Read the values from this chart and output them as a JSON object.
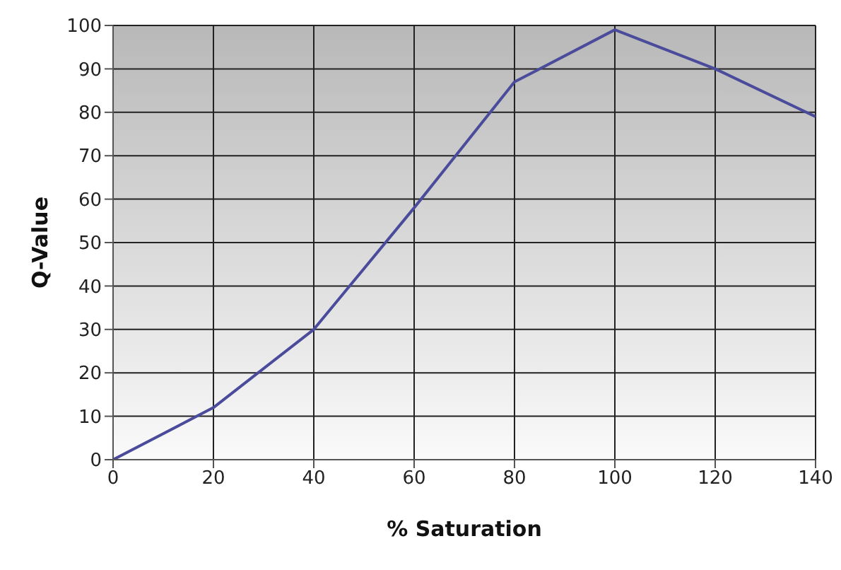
{
  "chart_data": {
    "type": "line",
    "xlabel": "% Saturation",
    "ylabel": "Q-Value",
    "x": [
      0,
      20,
      40,
      60,
      80,
      100,
      120,
      140
    ],
    "series": [
      {
        "color": "#4b4b9c",
        "values": [
          0,
          12,
          30,
          58,
          87,
          99,
          90,
          79
        ]
      }
    ],
    "xlim": [
      0,
      140
    ],
    "xticks": [
      0,
      20,
      40,
      60,
      80,
      100,
      120,
      140
    ],
    "ylim": [
      0,
      100
    ],
    "yticks": [
      0,
      10,
      20,
      30,
      40,
      50,
      60,
      70,
      80,
      90,
      100
    ],
    "grid": true,
    "marker": "none",
    "line_style": "solid"
  }
}
